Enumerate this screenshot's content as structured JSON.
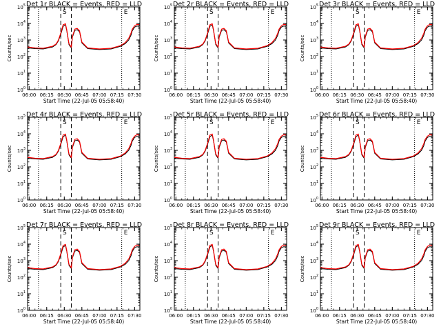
{
  "chart_data": [
    {
      "type": "line",
      "title": "Det 1r BLACK = Events, RED = LLD",
      "xlabel": "Start Time (22-Jul-05 05:58:40)",
      "ylabel": "Counts/sec",
      "x_ticks": [
        "06:00",
        "06:15",
        "06:30",
        "06:45",
        "07:00",
        "07:15",
        "07:30"
      ],
      "y_ticks": [
        "10^0",
        "10^1",
        "10^2",
        "10^3",
        "10^4",
        "10^5"
      ],
      "ylim_log10": [
        0,
        5
      ],
      "y_scale": "log",
      "markers": [
        "S",
        "E"
      ],
      "series": [
        {
          "name": "Events",
          "color": "#000000"
        },
        {
          "name": "LLD",
          "color": "#ff0000"
        }
      ]
    },
    {
      "type": "line",
      "title": "Det 2r BLACK = Events, RED = LLD",
      "xlabel": "Start Time (22-Jul-05 05:58:40)",
      "ylabel": "Counts/sec",
      "x_ticks": [
        "06:00",
        "06:15",
        "06:30",
        "06:45",
        "07:00",
        "07:15",
        "07:30"
      ],
      "y_ticks": [
        "10^0",
        "10^1",
        "10^2",
        "10^3",
        "10^4",
        "10^5"
      ],
      "ylim_log10": [
        0,
        5
      ],
      "y_scale": "log",
      "markers": [
        "S",
        "E"
      ],
      "series": [
        {
          "name": "Events",
          "color": "#000000"
        },
        {
          "name": "LLD",
          "color": "#ff0000"
        }
      ]
    },
    {
      "type": "line",
      "title": "Det 3r BLACK = Events, RED = LLD",
      "xlabel": "Start Time (22-Jul-05 05:58:40)",
      "ylabel": "Counts/sec",
      "x_ticks": [
        "06:00",
        "06:15",
        "06:30",
        "06:45",
        "07:00",
        "07:15",
        "07:30"
      ],
      "y_ticks": [
        "10^0",
        "10^1",
        "10^2",
        "10^3",
        "10^4",
        "10^5"
      ],
      "ylim_log10": [
        0,
        5
      ],
      "y_scale": "log",
      "markers": [
        "S",
        "E"
      ],
      "series": [
        {
          "name": "Events",
          "color": "#000000"
        },
        {
          "name": "LLD",
          "color": "#ff0000"
        }
      ]
    },
    {
      "type": "line",
      "title": "Det 4r BLACK = Events, RED = LLD",
      "xlabel": "Start Time (22-Jul-05 05:58:40)",
      "ylabel": "Counts/sec",
      "x_ticks": [
        "06:00",
        "06:15",
        "06:30",
        "06:45",
        "07:00",
        "07:15",
        "07:30"
      ],
      "y_ticks": [
        "10^0",
        "10^1",
        "10^2",
        "10^3",
        "10^4",
        "10^5"
      ],
      "ylim_log10": [
        0,
        5
      ],
      "y_scale": "log",
      "markers": [
        "S",
        "E"
      ],
      "series": [
        {
          "name": "Events",
          "color": "#000000"
        },
        {
          "name": "LLD",
          "color": "#ff0000"
        }
      ]
    },
    {
      "type": "line",
      "title": "Det 5r BLACK = Events, RED = LLD",
      "xlabel": "Start Time (22-Jul-05 05:58:40)",
      "ylabel": "Counts/sec",
      "x_ticks": [
        "06:00",
        "06:15",
        "06:30",
        "06:45",
        "07:00",
        "07:15",
        "07:30"
      ],
      "y_ticks": [
        "10^0",
        "10^1",
        "10^2",
        "10^3",
        "10^4",
        "10^5"
      ],
      "ylim_log10": [
        0,
        5
      ],
      "y_scale": "log",
      "markers": [
        "S",
        "E"
      ],
      "series": [
        {
          "name": "Events",
          "color": "#000000"
        },
        {
          "name": "LLD",
          "color": "#ff0000"
        }
      ]
    },
    {
      "type": "line",
      "title": "Det 6r BLACK = Events, RED = LLD",
      "xlabel": "Start Time (22-Jul-05 05:58:40)",
      "ylabel": "Counts/sec",
      "x_ticks": [
        "06:00",
        "06:15",
        "06:30",
        "06:45",
        "07:00",
        "07:15",
        "07:30"
      ],
      "y_ticks": [
        "10^0",
        "10^1",
        "10^2",
        "10^3",
        "10^4",
        "10^5"
      ],
      "ylim_log10": [
        0,
        5
      ],
      "y_scale": "log",
      "markers": [
        "S",
        "E"
      ],
      "series": [
        {
          "name": "Events",
          "color": "#000000"
        },
        {
          "name": "LLD",
          "color": "#ff0000"
        }
      ]
    },
    {
      "type": "line",
      "title": "Det 7r BLACK = Events, RED = LLD",
      "xlabel": "Start Time (22-Jul-05 05:58:40)",
      "ylabel": "Counts/sec",
      "x_ticks": [
        "06:00",
        "06:15",
        "06:30",
        "06:45",
        "07:00",
        "07:15",
        "07:30"
      ],
      "y_ticks": [
        "10^0",
        "10^1",
        "10^2",
        "10^3",
        "10^4",
        "10^5"
      ],
      "ylim_log10": [
        0,
        5
      ],
      "y_scale": "log",
      "markers": [
        "S",
        "E"
      ],
      "series": [
        {
          "name": "Events",
          "color": "#000000"
        },
        {
          "name": "LLD",
          "color": "#ff0000"
        }
      ]
    },
    {
      "type": "line",
      "title": "Det 8r BLACK = Events, RED = LLD",
      "xlabel": "Start Time (22-Jul-05 05:58:40)",
      "ylabel": "Counts/sec",
      "x_ticks": [
        "06:00",
        "06:15",
        "06:30",
        "06:45",
        "07:00",
        "07:15",
        "07:30"
      ],
      "y_ticks": [
        "10^0",
        "10^1",
        "10^2",
        "10^3",
        "10^4",
        "10^5"
      ],
      "ylim_log10": [
        0,
        5
      ],
      "y_scale": "log",
      "markers": [
        "S",
        "E"
      ],
      "series": [
        {
          "name": "Events",
          "color": "#000000"
        },
        {
          "name": "LLD",
          "color": "#ff0000"
        }
      ]
    },
    {
      "type": "line",
      "title": "Det 9r BLACK = Events, RED = LLD",
      "xlabel": "Start Time (22-Jul-05 05:58:40)",
      "ylabel": "Counts/sec",
      "x_ticks": [
        "06:00",
        "06:15",
        "06:30",
        "06:45",
        "07:00",
        "07:15",
        "07:30"
      ],
      "y_ticks": [
        "10^0",
        "10^1",
        "10^2",
        "10^3",
        "10^4",
        "10^5"
      ],
      "ylim_log10": [
        0,
        5
      ],
      "y_scale": "log",
      "markers": [
        "S",
        "E"
      ],
      "series": [
        {
          "name": "Events",
          "color": "#000000"
        },
        {
          "name": "LLD",
          "color": "#ff0000"
        }
      ]
    }
  ],
  "time_axis": {
    "start": "05:58:40",
    "end": "07:34:30",
    "dotted_markers": [
      "06:08",
      "07:19"
    ],
    "dashed_markers": [
      "06:27",
      "06:36"
    ],
    "marker_labels": [
      "S",
      "E"
    ]
  },
  "curve_profile": {
    "x": [
      "05:58:40",
      "06:05",
      "06:12",
      "06:20",
      "06:23",
      "06:25",
      "06:27",
      "06:29",
      "06:31",
      "06:32",
      "06:34",
      "06:36",
      "06:37",
      "06:39",
      "06:41",
      "06:43",
      "06:45",
      "06:50",
      "07:00",
      "07:10",
      "07:18",
      "07:22",
      "07:25",
      "07:27",
      "07:28",
      "07:30",
      "07:32",
      "07:34"
    ],
    "events_log10": [
      2.52,
      2.48,
      2.46,
      2.58,
      2.72,
      2.95,
      3.35,
      3.82,
      3.92,
      3.6,
      2.72,
      2.52,
      3.18,
      3.58,
      3.62,
      3.5,
      2.82,
      2.48,
      2.42,
      2.46,
      2.62,
      2.78,
      3.0,
      3.3,
      3.55,
      3.78,
      3.84,
      3.82
    ],
    "lld_log10": [
      2.58,
      2.52,
      2.5,
      2.62,
      2.76,
      3.0,
      3.42,
      3.92,
      3.98,
      3.66,
      2.78,
      2.58,
      3.24,
      3.66,
      3.7,
      3.56,
      2.88,
      2.52,
      2.46,
      2.5,
      2.66,
      2.84,
      3.1,
      3.42,
      3.65,
      3.86,
      3.94,
      3.92
    ]
  },
  "colors": {
    "events": "#000000",
    "lld": "#ff0000",
    "background": "#ffffff",
    "axes": "#000000"
  }
}
